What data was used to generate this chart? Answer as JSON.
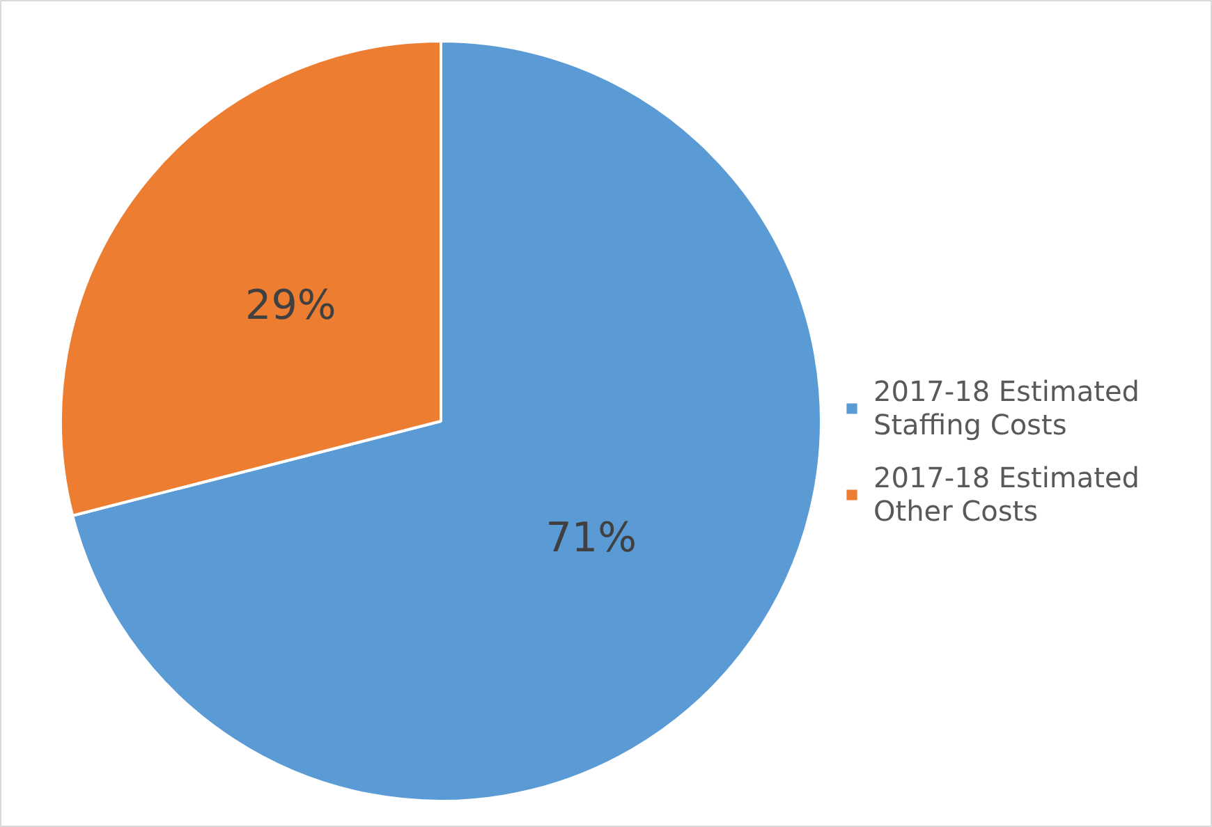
{
  "chart_data": {
    "type": "pie",
    "categories": [
      "2017-18 Estimated Staffing Costs",
      "2017-18 Estimated Other Costs"
    ],
    "values": [
      71,
      29
    ],
    "colors": [
      "#5b9bd5",
      "#ed7d31"
    ],
    "value_labels": [
      "71%",
      "29%"
    ],
    "legend": "right"
  }
}
